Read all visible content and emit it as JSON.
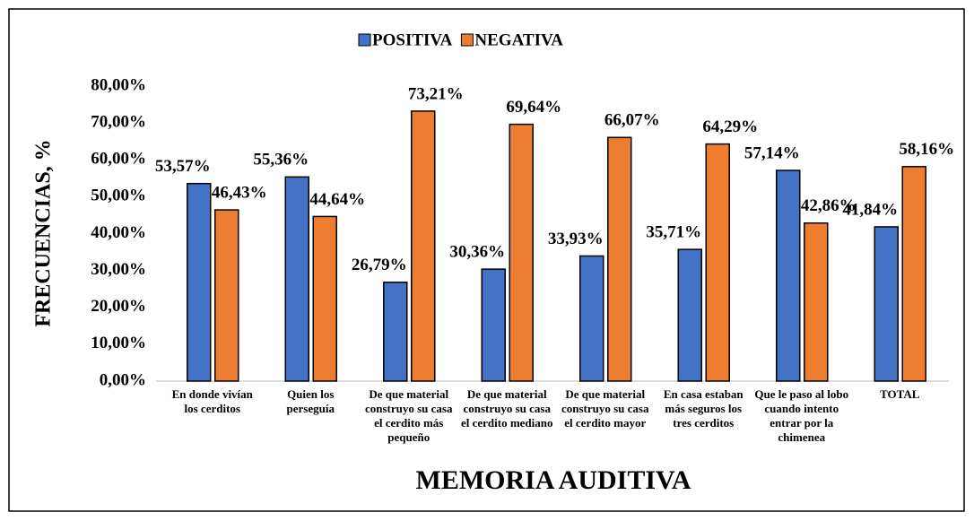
{
  "chart_data": {
    "type": "bar",
    "x_label": "MEMORIA AUDITIVA",
    "y_label": "FRECUENCIAS, %",
    "categories": [
      "En donde vivían los cerditos",
      "Quien los perseguía",
      "De que material construyo su casa el cerdito más pequeño",
      "De que material construyo su casa el cerdito mediano",
      "De que material construyo su casa el cerdito mayor",
      "En casa estaban más seguros los tres cerditos",
      "Que le paso al lobo cuando intento entrar por la chimenea",
      "TOTAL"
    ],
    "series": [
      {
        "name": "POSITIVA",
        "color": "#4472c4",
        "values": [
          53.57,
          55.36,
          26.79,
          30.36,
          33.93,
          35.71,
          57.14,
          41.84
        ],
        "value_labels": [
          "53,57%",
          "55,36%",
          "26,79%",
          "30,36%",
          "33,93%",
          "35,71%",
          "57,14%",
          "41,84%"
        ]
      },
      {
        "name": "NEGATIVA",
        "color": "#ed7d31",
        "values": [
          46.43,
          44.64,
          73.21,
          69.64,
          66.07,
          64.29,
          42.86,
          58.16
        ],
        "value_labels": [
          "46,43%",
          "44,64%",
          "73,21%",
          "69,64%",
          "66,07%",
          "64,29%",
          "42,86%",
          "58,16%"
        ]
      }
    ],
    "ylim": [
      0,
      80
    ],
    "yticks": [
      {
        "value": 0,
        "label": "0,00%"
      },
      {
        "value": 10,
        "label": "10,00%"
      },
      {
        "value": 20,
        "label": "20,00%"
      },
      {
        "value": 30,
        "label": "30,00%"
      },
      {
        "value": 40,
        "label": "40,00%"
      },
      {
        "value": 50,
        "label": "50,00%"
      },
      {
        "value": 60,
        "label": "60,00%"
      },
      {
        "value": 70,
        "label": "70,00%"
      },
      {
        "value": 80,
        "label": "80,00%"
      }
    ],
    "legend": "top",
    "grid": false
  }
}
